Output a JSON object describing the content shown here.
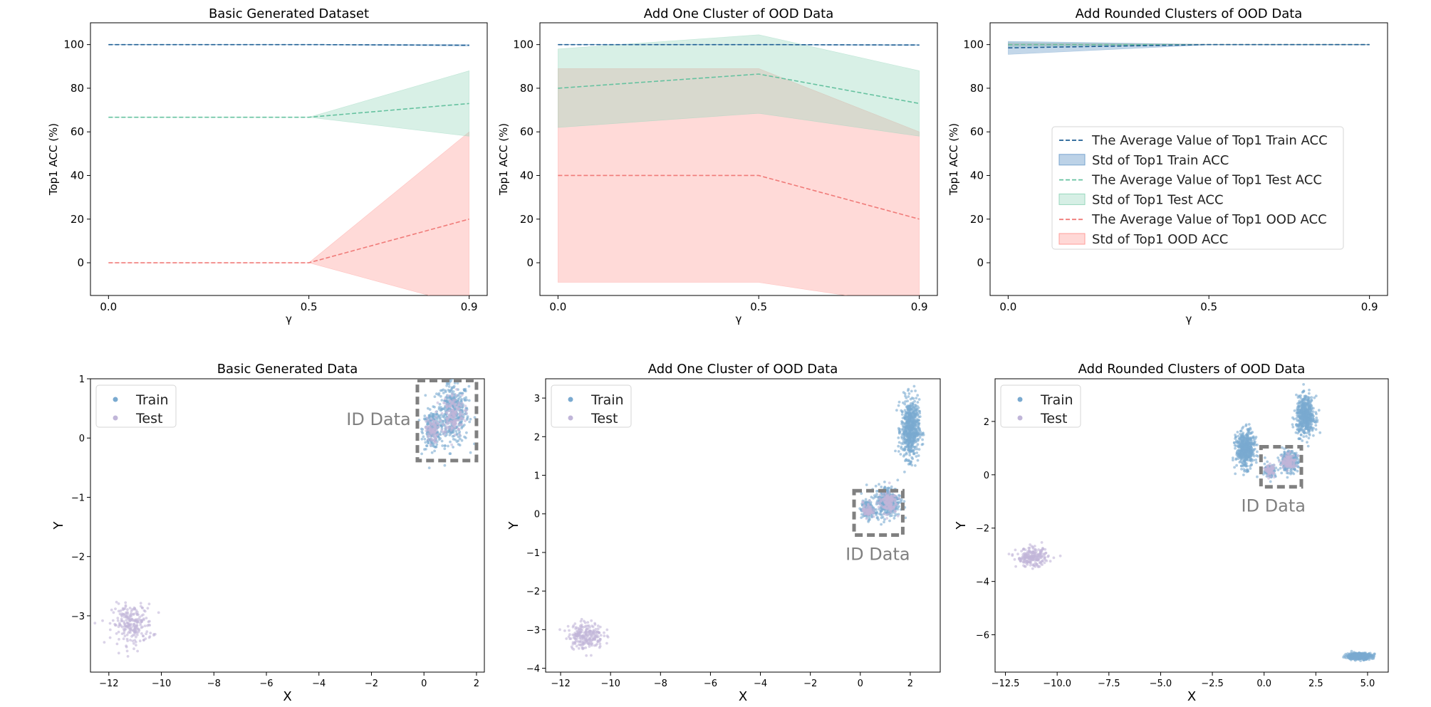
{
  "chart_data": [
    {
      "type": "line",
      "title": "Basic Generated Dataset",
      "xlabel": "γ",
      "ylabel": "Top1 ACC (%)",
      "x": [
        0.0,
        0.5,
        0.9
      ],
      "xticks": [
        "0.0",
        "0.5",
        "0.9"
      ],
      "yticks": [
        0,
        20,
        40,
        60,
        80,
        100
      ],
      "ylim": [
        -15,
        110
      ],
      "series": [
        {
          "name": "The Average Value of Top1 Train ACC",
          "values": [
            100,
            100,
            99.7
          ],
          "std_low": [
            99.9,
            99.9,
            99.4
          ],
          "std_high": [
            100.1,
            100.1,
            100
          ]
        },
        {
          "name": "The Average Value of Top1 Test ACC",
          "values": [
            66.7,
            66.7,
            73
          ],
          "std_low": [
            66.7,
            66.7,
            58
          ],
          "std_high": [
            66.7,
            66.7,
            88
          ]
        },
        {
          "name": "The Average Value of Top1 OOD ACC",
          "values": [
            0,
            0,
            20
          ],
          "std_low": [
            0,
            0,
            -20
          ],
          "std_high": [
            0,
            0,
            60
          ]
        }
      ]
    },
    {
      "type": "line",
      "title": "Add One Cluster of OOD Data",
      "xlabel": "γ",
      "ylabel": "Top1 ACC (%)",
      "x": [
        0.0,
        0.5,
        0.9
      ],
      "xticks": [
        "0.0",
        "0.5",
        "0.9"
      ],
      "yticks": [
        0,
        20,
        40,
        60,
        80,
        100
      ],
      "ylim": [
        -15,
        110
      ],
      "series": [
        {
          "name": "The Average Value of Top1 Train ACC",
          "values": [
            100,
            100,
            99.8
          ],
          "std_low": [
            99.9,
            99.9,
            99.6
          ],
          "std_high": [
            100.1,
            100.1,
            100
          ]
        },
        {
          "name": "The Average Value of Top1 Test ACC",
          "values": [
            80,
            86.5,
            73
          ],
          "std_low": [
            62,
            68.5,
            58
          ],
          "std_high": [
            98,
            104.5,
            88
          ]
        },
        {
          "name": "The Average Value of Top1 OOD ACC",
          "values": [
            40,
            40,
            20
          ],
          "std_low": [
            -9,
            -9,
            -20
          ],
          "std_high": [
            89,
            89,
            60
          ]
        }
      ]
    },
    {
      "type": "line",
      "title": "Add Rounded Clusters of OOD Data",
      "xlabel": "γ",
      "ylabel": "Top1 ACC (%)",
      "x": [
        0.0,
        0.5,
        0.9
      ],
      "xticks": [
        "0.0",
        "0.5",
        "0.9"
      ],
      "yticks": [
        0,
        20,
        40,
        60,
        80,
        100
      ],
      "ylim": [
        -15,
        110
      ],
      "legend_position": "center-right",
      "legend": [
        "The Average Value of Top1 Train ACC",
        "Std of Top1 Train ACC",
        "The Average Value of Top1 Test ACC",
        "Std of Top1 Test ACC",
        "The Average Value of Top1 OOD ACC",
        "Std of Top1 OOD ACC"
      ],
      "series": [
        {
          "name": "The Average Value of Top1 Train ACC",
          "values": [
            98.5,
            100,
            100
          ],
          "std_low": [
            95.5,
            99.9,
            99.9
          ],
          "std_high": [
            101.5,
            100.1,
            100.1
          ]
        },
        {
          "name": "The Average Value of Top1 Test ACC",
          "values": [
            100,
            100,
            100
          ],
          "std_low": [
            99,
            99.9,
            99.9
          ],
          "std_high": [
            101,
            100.1,
            100.1
          ]
        },
        {
          "name": "The Average Value of Top1 OOD ACC",
          "values": [
            100,
            100,
            100
          ],
          "std_low": [
            99.5,
            99.9,
            99.9
          ],
          "std_high": [
            100.5,
            100.1,
            100.1
          ]
        }
      ]
    },
    {
      "type": "scatter",
      "title": "Basic Generated Data",
      "xlabel": "X",
      "ylabel": "Y",
      "xlim": [
        -12.7,
        2.3
      ],
      "ylim": [
        -3.95,
        1.0
      ],
      "xticks": [
        -12,
        -10,
        -8,
        -6,
        -4,
        -2,
        0,
        2
      ],
      "yticks": [
        -3,
        -2,
        -1,
        0,
        1
      ],
      "legend": [
        "Train",
        "Test"
      ],
      "annotation": "ID Data",
      "clusters": [
        {
          "series": "Train",
          "cx": 1.1,
          "cy": 0.42,
          "sx": 0.3,
          "sy": 0.26,
          "n": 420
        },
        {
          "series": "Train",
          "cx": 0.3,
          "cy": 0.14,
          "sx": 0.17,
          "sy": 0.16,
          "n": 200
        },
        {
          "series": "Test",
          "cx": 1.1,
          "cy": 0.4,
          "sx": 0.22,
          "sy": 0.18,
          "n": 150
        },
        {
          "series": "Test",
          "cx": 0.3,
          "cy": 0.13,
          "sx": 0.11,
          "sy": 0.11,
          "n": 80
        },
        {
          "series": "Test",
          "cx": -11.1,
          "cy": -3.15,
          "sx": 0.38,
          "sy": 0.17,
          "n": 230
        }
      ]
    },
    {
      "type": "scatter",
      "title": "Add One Cluster of OOD Data",
      "xlabel": "X",
      "ylabel": "Y",
      "xlim": [
        -12.6,
        3.2
      ],
      "ylim": [
        -4.1,
        3.5
      ],
      "xticks": [
        -12,
        -10,
        -8,
        -6,
        -4,
        -2,
        0,
        2
      ],
      "yticks": [
        -4,
        -3,
        -2,
        -1,
        0,
        1,
        2,
        3
      ],
      "legend": [
        "Train",
        "Test"
      ],
      "annotation": "ID Data",
      "clusters": [
        {
          "series": "Train",
          "cx": 2.0,
          "cy": 2.2,
          "sx": 0.18,
          "sy": 0.38,
          "n": 600
        },
        {
          "series": "Train",
          "cx": 1.1,
          "cy": 0.33,
          "sx": 0.25,
          "sy": 0.2,
          "n": 350
        },
        {
          "series": "Train",
          "cx": 0.3,
          "cy": 0.1,
          "sx": 0.13,
          "sy": 0.12,
          "n": 150
        },
        {
          "series": "Test",
          "cx": 1.1,
          "cy": 0.3,
          "sx": 0.18,
          "sy": 0.14,
          "n": 140
        },
        {
          "series": "Test",
          "cx": 0.3,
          "cy": 0.1,
          "sx": 0.1,
          "sy": 0.1,
          "n": 70
        },
        {
          "series": "Test",
          "cx": -11.0,
          "cy": -3.15,
          "sx": 0.35,
          "sy": 0.17,
          "n": 230
        }
      ]
    },
    {
      "type": "scatter",
      "title": "Add Rounded Clusters of OOD Data",
      "xlabel": "X",
      "ylabel": "Y",
      "xlim": [
        -13.0,
        6.0
      ],
      "ylim": [
        -7.4,
        3.6
      ],
      "xticks": [
        "-12.5",
        "-10.0",
        "-7.5",
        "-5.0",
        "-2.5",
        "0.0",
        "2.5",
        "5.0"
      ],
      "xtick_values": [
        -12.5,
        -10.0,
        -7.5,
        -5.0,
        -2.5,
        0.0,
        2.5,
        5.0
      ],
      "yticks": [
        -6,
        -4,
        -2,
        0,
        2
      ],
      "legend": [
        "Train",
        "Test"
      ],
      "annotation": "ID Data",
      "clusters": [
        {
          "series": "Train",
          "cx": 2.0,
          "cy": 2.2,
          "sx": 0.22,
          "sy": 0.36,
          "n": 500
        },
        {
          "series": "Train",
          "cx": -0.9,
          "cy": 0.95,
          "sx": 0.22,
          "sy": 0.34,
          "n": 500
        },
        {
          "series": "Train",
          "cx": 4.6,
          "cy": -6.8,
          "sx": 0.3,
          "sy": 0.06,
          "n": 450
        },
        {
          "series": "Train",
          "cx": 1.2,
          "cy": 0.5,
          "sx": 0.22,
          "sy": 0.18,
          "n": 250
        },
        {
          "series": "Train",
          "cx": 0.3,
          "cy": 0.15,
          "sx": 0.13,
          "sy": 0.12,
          "n": 120
        },
        {
          "series": "Test",
          "cx": 1.2,
          "cy": 0.48,
          "sx": 0.17,
          "sy": 0.14,
          "n": 120
        },
        {
          "series": "Test",
          "cx": 0.3,
          "cy": 0.15,
          "sx": 0.1,
          "sy": 0.1,
          "n": 60
        },
        {
          "series": "Test",
          "cx": -11.2,
          "cy": -3.1,
          "sx": 0.38,
          "sy": 0.17,
          "n": 220
        }
      ]
    }
  ],
  "colors": {
    "train_line": "#1f5f94",
    "train_fill": "#7aa6cf",
    "test_line": "#66c2a0",
    "test_fill": "#98d7bd",
    "ood_line": "#f07b79",
    "ood_fill": "#ff9e99",
    "scatter_train": "#7aaad0",
    "scatter_test": "#c1b6d9",
    "id_box": "#808080"
  }
}
